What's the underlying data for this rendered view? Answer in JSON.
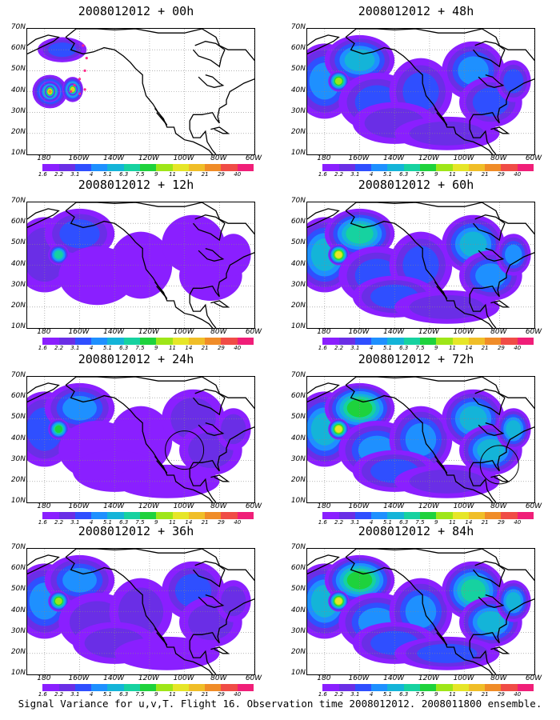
{
  "panels": [
    {
      "title": "2008012012 + 00h",
      "intensity": 0.0
    },
    {
      "title": "2008012012 + 48h",
      "intensity": 0.55
    },
    {
      "title": "2008012012 + 12h",
      "intensity": 0.12
    },
    {
      "title": "2008012012 + 60h",
      "intensity": 0.65
    },
    {
      "title": "2008012012 + 24h",
      "intensity": 0.28,
      "circle": {
        "lon": -100,
        "lat": 35
      }
    },
    {
      "title": "2008012012 + 72h",
      "intensity": 0.75,
      "circle": {
        "lon": -80,
        "lat": 28
      }
    },
    {
      "title": "2008012012 + 36h",
      "intensity": 0.4
    },
    {
      "title": "2008012012 + 84h",
      "intensity": 0.85
    }
  ],
  "lat_labels": [
    "70N",
    "60N",
    "50N",
    "40N",
    "30N",
    "20N",
    "10N"
  ],
  "lon_labels": [
    "180",
    "160W",
    "140W",
    "120W",
    "100W",
    "80W",
    "60W"
  ],
  "colorbar": {
    "levels": [
      "1.6",
      "2.2",
      "3.1",
      "4",
      "5.1",
      "6.3",
      "7.5",
      "9",
      "11",
      "14",
      "21",
      "29",
      "40"
    ],
    "colors": [
      "#ffffff",
      "#8a1fff",
      "#6a2ee6",
      "#2f4fff",
      "#1e90ff",
      "#14b4d8",
      "#16d2a0",
      "#1ed23c",
      "#9ee618",
      "#e6e628",
      "#f0be28",
      "#f08c28",
      "#f04c46",
      "#f01e78"
    ]
  },
  "caption": "Signal Variance for u,v,T. Flight 16. Observation time 2008012012. 2008011800 ensemble."
}
